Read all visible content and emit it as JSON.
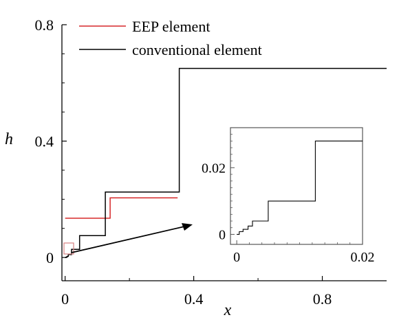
{
  "chart_data": {
    "type": "line",
    "title": "",
    "xlabel": "x",
    "ylabel": "h",
    "xlim": [
      -0.01,
      1.0
    ],
    "ylim": [
      -0.08,
      0.8
    ],
    "xticks": [
      0,
      0.4,
      0.8
    ],
    "xtick_labels": [
      "0",
      "0.4",
      "0.8"
    ],
    "yticks": [
      0,
      0.4,
      0.8
    ],
    "ytick_labels": [
      "0",
      "0.4",
      "0.8"
    ],
    "grid": false,
    "legend_position": "top-left",
    "series": [
      {
        "name": "EEP element",
        "color": "#d62728",
        "x": [
          0.0,
          0.14,
          0.14,
          0.35
        ],
        "y": [
          0.135,
          0.135,
          0.205,
          0.205
        ]
      },
      {
        "name": "conventional element",
        "color": "#000000",
        "x": [
          0.0,
          0.0025,
          0.0025,
          0.005,
          0.005,
          0.0075,
          0.0075,
          0.01,
          0.01,
          0.02,
          0.02,
          0.045,
          0.045,
          0.125,
          0.125,
          0.355,
          0.355,
          1.0
        ],
        "y": [
          0.0,
          0.0,
          0.001,
          0.001,
          0.0025,
          0.0025,
          0.004,
          0.004,
          0.01,
          0.01,
          0.028,
          0.028,
          0.075,
          0.075,
          0.225,
          0.225,
          0.65,
          0.65
        ]
      }
    ],
    "inset": {
      "xlim": [
        -0.001,
        0.02
      ],
      "ylim": [
        -0.003,
        0.032
      ],
      "xticks": [
        0,
        0.02
      ],
      "xtick_labels": [
        "0",
        "0.02"
      ],
      "yticks": [
        0,
        0.02
      ],
      "ytick_labels": [
        "0",
        "0.02"
      ],
      "series": [
        {
          "color": "#000000",
          "x": [
            0.0,
            0.0004,
            0.0004,
            0.001,
            0.001,
            0.0018,
            0.0018,
            0.0025,
            0.0025,
            0.005,
            0.005,
            0.0125,
            0.0125,
            0.02
          ],
          "y": [
            0.0,
            0.0,
            0.0008,
            0.0008,
            0.0015,
            0.0015,
            0.0025,
            0.0025,
            0.004,
            0.004,
            0.01,
            0.01,
            0.028,
            0.028
          ]
        }
      ]
    }
  }
}
